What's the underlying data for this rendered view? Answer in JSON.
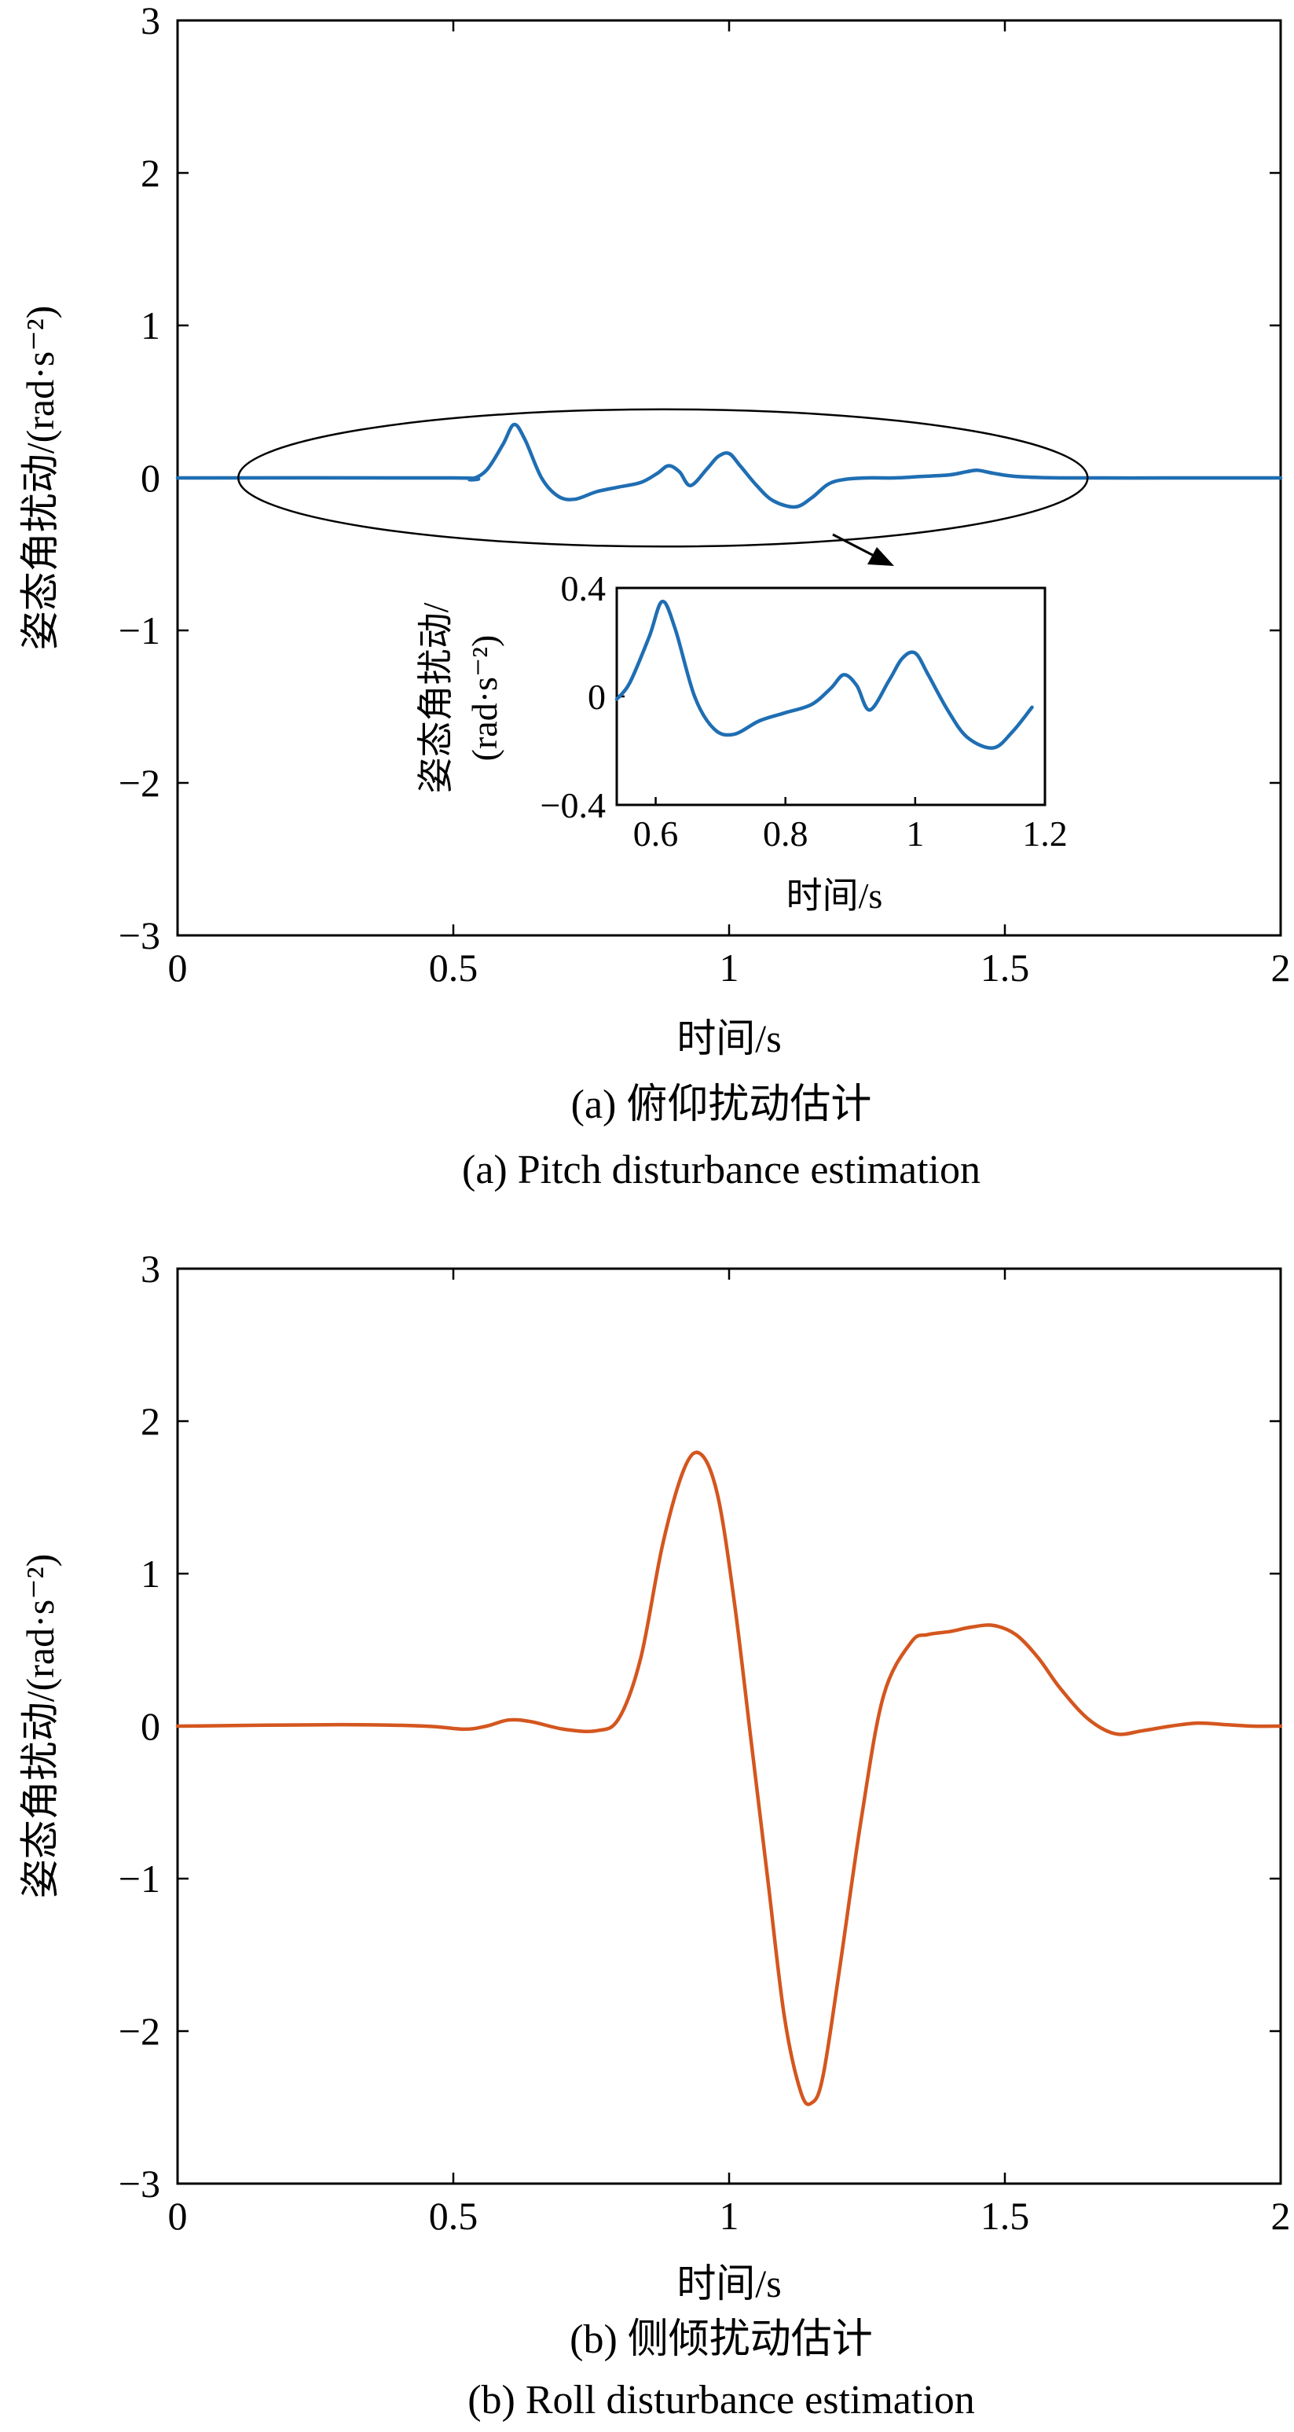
{
  "chart_data": [
    {
      "type": "line",
      "caption_cn": "(a) 俯仰扰动估计",
      "caption_en": "(a) Pitch disturbance estimation",
      "xlabel": "时间/s",
      "ylabel": "姿态角扰动/(rad·s⁻²)",
      "xlim": [
        0,
        2
      ],
      "ylim": [
        -3,
        3
      ],
      "xticks": [
        0,
        0.5,
        1,
        1.5,
        2
      ],
      "xtick_labels": [
        "0",
        "0.5",
        "1",
        "1.5",
        "2"
      ],
      "yticks": [
        3,
        2,
        1,
        0,
        -1,
        -2,
        -3
      ],
      "ytick_labels": [
        "3",
        "2",
        "1",
        "0",
        "−1",
        "−2",
        "−3"
      ],
      "grid": false,
      "color": "#1f6eb3",
      "series": [
        {
          "x": [
            0,
            0.5,
            0.53,
            0.56,
            0.59,
            0.61,
            0.63,
            0.66,
            0.69,
            0.72,
            0.76,
            0.8,
            0.84,
            0.87,
            0.89,
            0.91,
            0.93,
            0.96,
            0.98,
            1.0,
            1.02,
            1.05,
            1.08,
            1.12,
            1.15,
            1.18,
            1.21,
            1.25,
            1.3,
            1.35,
            1.4,
            1.43,
            1.45,
            1.48,
            1.52,
            1.6,
            1.8,
            2.0
          ],
          "y": [
            0,
            0,
            -0.01,
            0.05,
            0.22,
            0.35,
            0.25,
            0.0,
            -0.12,
            -0.14,
            -0.09,
            -0.06,
            -0.03,
            0.03,
            0.08,
            0.04,
            -0.05,
            0.06,
            0.14,
            0.16,
            0.08,
            -0.05,
            -0.15,
            -0.19,
            -0.13,
            -0.04,
            -0.01,
            0.0,
            0.0,
            0.01,
            0.02,
            0.04,
            0.05,
            0.03,
            0.01,
            0.0,
            0.0,
            0.0
          ]
        }
      ],
      "annotation": {
        "ellipse_center": [
          0.88,
          0.0
        ],
        "inset": {
          "xlabel": "时间/s",
          "ylabel": "姿态角扰动/(rad·s⁻²)",
          "ylabel_line1": "姿态角扰动/",
          "ylabel_line2": "(rad·s⁻²)",
          "xlim": [
            0.54,
            1.2
          ],
          "ylim": [
            -0.4,
            0.4
          ],
          "xticks": [
            0.6,
            0.8,
            1,
            1.2
          ],
          "xtick_labels": [
            "0.6",
            "0.8",
            "1",
            "1.2"
          ],
          "yticks": [
            0.4,
            0,
            -0.4
          ],
          "ytick_labels": [
            "0.4",
            "0",
            "−0.4"
          ]
        }
      }
    },
    {
      "type": "line",
      "caption_cn": "(b) 侧倾扰动估计",
      "caption_en": "(b) Roll disturbance estimation",
      "xlabel": "时间/s",
      "ylabel": "姿态角扰动/(rad·s⁻²)",
      "xlim": [
        0,
        2
      ],
      "ylim": [
        -3,
        3
      ],
      "xticks": [
        0,
        0.5,
        1,
        1.5,
        2
      ],
      "xtick_labels": [
        "0",
        "0.5",
        "1",
        "1.5",
        "2"
      ],
      "yticks": [
        3,
        2,
        1,
        0,
        -1,
        -2,
        -3
      ],
      "ytick_labels": [
        "3",
        "2",
        "1",
        "0",
        "−1",
        "−2",
        "−3"
      ],
      "grid": false,
      "color": "#d4561f",
      "series": [
        {
          "x": [
            0,
            0.3,
            0.45,
            0.52,
            0.56,
            0.6,
            0.64,
            0.7,
            0.76,
            0.8,
            0.84,
            0.88,
            0.92,
            0.95,
            0.98,
            1.01,
            1.04,
            1.07,
            1.1,
            1.13,
            1.15,
            1.17,
            1.2,
            1.24,
            1.28,
            1.33,
            1.36,
            1.4,
            1.44,
            1.48,
            1.52,
            1.56,
            1.6,
            1.65,
            1.7,
            1.75,
            1.8,
            1.85,
            1.9,
            1.95,
            2.0
          ],
          "y": [
            0,
            0.01,
            0.0,
            -0.02,
            0.0,
            0.04,
            0.03,
            -0.02,
            -0.03,
            0.05,
            0.45,
            1.2,
            1.7,
            1.78,
            1.5,
            0.8,
            -0.1,
            -1.0,
            -1.9,
            -2.4,
            -2.47,
            -2.3,
            -1.6,
            -0.6,
            0.2,
            0.55,
            0.6,
            0.62,
            0.65,
            0.66,
            0.6,
            0.45,
            0.25,
            0.05,
            -0.05,
            -0.03,
            0.0,
            0.02,
            0.01,
            0.0,
            0.0
          ]
        }
      ]
    }
  ]
}
